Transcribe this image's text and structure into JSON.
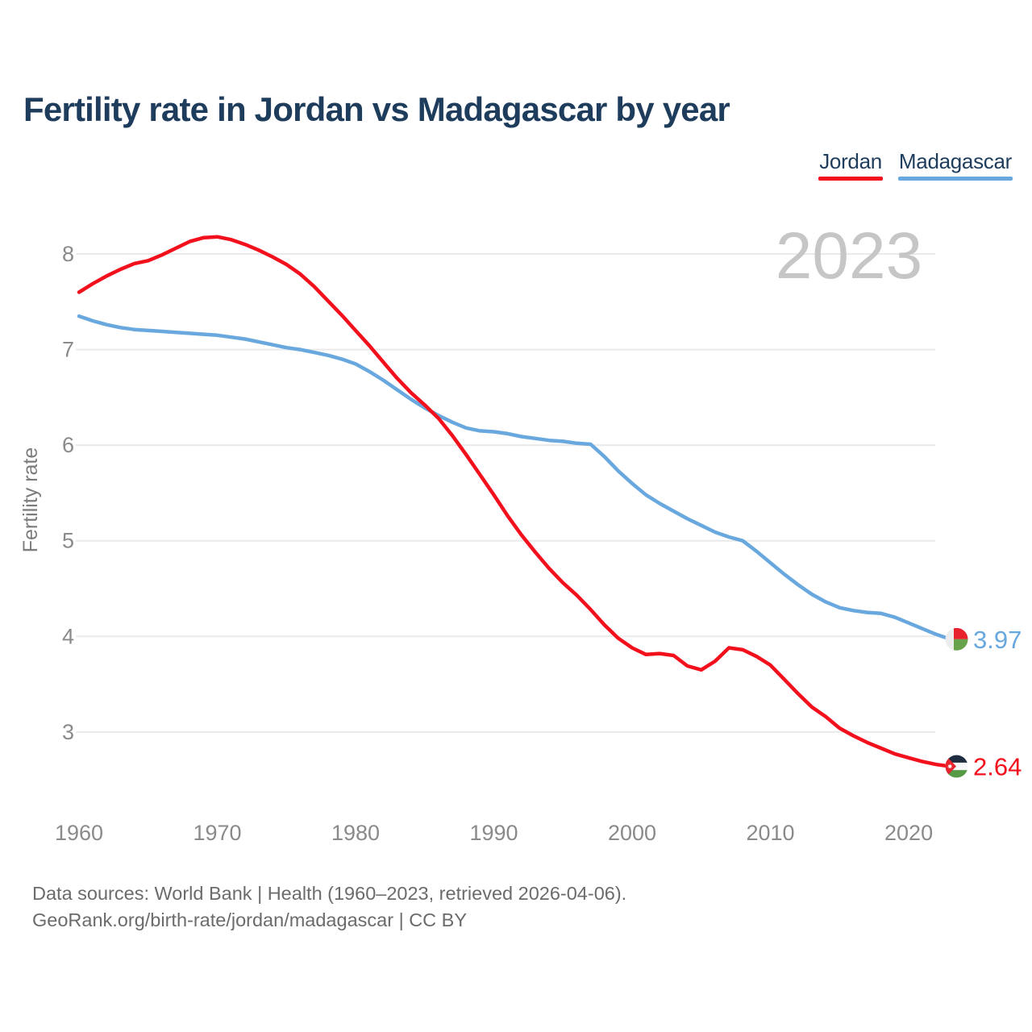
{
  "title": "Fertility rate in Jordan vs Madagascar by year",
  "legend": {
    "items": [
      {
        "label": "Jordan",
        "color": "#f2101c"
      },
      {
        "label": "Madagascar",
        "color": "#68a8de"
      }
    ]
  },
  "watermark": "2023",
  "footer": {
    "line1": "Data sources: World Bank | Health (1960–2023, retrieved 2026-04-06).",
    "line2": "GeoRank.org/birth-rate/jordan/madagascar | CC BY"
  },
  "end_labels": [
    {
      "series": "Madagascar",
      "value": "3.97",
      "flag": "madagascar-flag",
      "color": "#68a8de"
    },
    {
      "series": "Jordan",
      "value": "2.64",
      "flag": "jordan-flag",
      "color": "#f2101c"
    }
  ],
  "colors": {
    "jordan": "#f2101c",
    "madagascar": "#68a8de",
    "heading": "#1e3c5c",
    "watermark": "#c6c6c6"
  },
  "chart_data": {
    "type": "line",
    "title": "Fertility rate in Jordan vs Madagascar by year",
    "xlabel": "",
    "ylabel": "Fertility rate",
    "grid": "horizontal",
    "legend_position": "top-right",
    "xlim": [
      1960,
      2023
    ],
    "ylim": [
      2.4,
      8.5
    ],
    "xticks": [
      1960,
      1970,
      1980,
      1990,
      2000,
      2010,
      2020
    ],
    "yticks": [
      3,
      4,
      5,
      6,
      7,
      8
    ],
    "x": [
      1960,
      1961,
      1962,
      1963,
      1964,
      1965,
      1966,
      1967,
      1968,
      1969,
      1970,
      1971,
      1972,
      1973,
      1974,
      1975,
      1976,
      1977,
      1978,
      1979,
      1980,
      1981,
      1982,
      1983,
      1984,
      1985,
      1986,
      1987,
      1988,
      1989,
      1990,
      1991,
      1992,
      1993,
      1994,
      1995,
      1996,
      1997,
      1998,
      1999,
      2000,
      2001,
      2002,
      2003,
      2004,
      2005,
      2006,
      2007,
      2008,
      2009,
      2010,
      2011,
      2012,
      2013,
      2014,
      2015,
      2016,
      2017,
      2018,
      2019,
      2020,
      2021,
      2022,
      2023
    ],
    "series": [
      {
        "name": "Madagascar",
        "color": "#68a8de",
        "values": [
          7.35,
          7.3,
          7.26,
          7.23,
          7.21,
          7.2,
          7.19,
          7.18,
          7.17,
          7.16,
          7.15,
          7.13,
          7.11,
          7.08,
          7.05,
          7.02,
          7.0,
          6.97,
          6.94,
          6.9,
          6.85,
          6.77,
          6.68,
          6.58,
          6.48,
          6.39,
          6.31,
          6.24,
          6.18,
          6.15,
          6.14,
          6.12,
          6.09,
          6.07,
          6.05,
          6.04,
          6.02,
          6.01,
          5.88,
          5.73,
          5.6,
          5.48,
          5.39,
          5.31,
          5.23,
          5.16,
          5.09,
          5.04,
          5.0,
          4.89,
          4.77,
          4.65,
          4.54,
          4.44,
          4.36,
          4.3,
          4.27,
          4.25,
          4.24,
          4.2,
          4.14,
          4.08,
          4.02,
          3.97
        ]
      },
      {
        "name": "Jordan",
        "color": "#f2101c",
        "values": [
          7.6,
          7.69,
          7.77,
          7.84,
          7.9,
          7.93,
          7.99,
          8.06,
          8.13,
          8.17,
          8.18,
          8.15,
          8.1,
          8.04,
          7.97,
          7.89,
          7.79,
          7.66,
          7.51,
          7.36,
          7.2,
          7.04,
          6.87,
          6.7,
          6.55,
          6.42,
          6.28,
          6.1,
          5.9,
          5.69,
          5.48,
          5.26,
          5.06,
          4.88,
          4.71,
          4.56,
          4.43,
          4.28,
          4.12,
          3.98,
          3.88,
          3.81,
          3.82,
          3.8,
          3.69,
          3.65,
          3.74,
          3.88,
          3.86,
          3.79,
          3.7,
          3.55,
          3.4,
          3.26,
          3.16,
          3.04,
          2.96,
          2.89,
          2.83,
          2.77,
          2.73,
          2.69,
          2.66,
          2.64
        ]
      }
    ]
  }
}
